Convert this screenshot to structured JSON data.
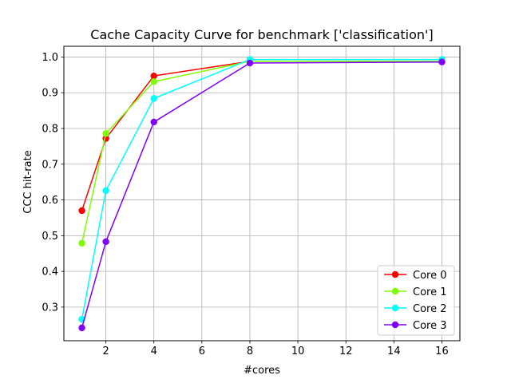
{
  "chart_data": {
    "type": "line",
    "title": "Cache Capacity Curve for benchmark ['classification']",
    "xlabel": "#cores",
    "ylabel": "CCC hit-rate",
    "xlim": [
      0.25,
      16.75
    ],
    "ylim": [
      0.206,
      1.03
    ],
    "xticks": [
      2,
      4,
      6,
      8,
      10,
      12,
      14,
      16
    ],
    "yticks": [
      0.3,
      0.4,
      0.5,
      0.6,
      0.7,
      0.8,
      0.9,
      1.0
    ],
    "xtick_labels": [
      "2",
      "4",
      "6",
      "8",
      "10",
      "12",
      "14",
      "16"
    ],
    "ytick_labels": [
      "0.3",
      "0.4",
      "0.5",
      "0.6",
      "0.7",
      "0.8",
      "0.9",
      "1.0"
    ],
    "grid": true,
    "legend_position": "bottom-right",
    "x": [
      1,
      2,
      4,
      8,
      16
    ],
    "series": [
      {
        "name": "Core 0",
        "color": "#ff0000",
        "values": [
          0.57,
          0.772,
          0.947,
          0.988,
          0.988
        ]
      },
      {
        "name": "Core 1",
        "color": "#80ff00",
        "values": [
          0.479,
          0.786,
          0.931,
          0.988,
          0.988
        ]
      },
      {
        "name": "Core 2",
        "color": "#00ffff",
        "values": [
          0.266,
          0.626,
          0.884,
          0.993,
          0.993
        ]
      },
      {
        "name": "Core 3",
        "color": "#7f00ff",
        "values": [
          0.242,
          0.483,
          0.818,
          0.983,
          0.986
        ]
      }
    ]
  }
}
